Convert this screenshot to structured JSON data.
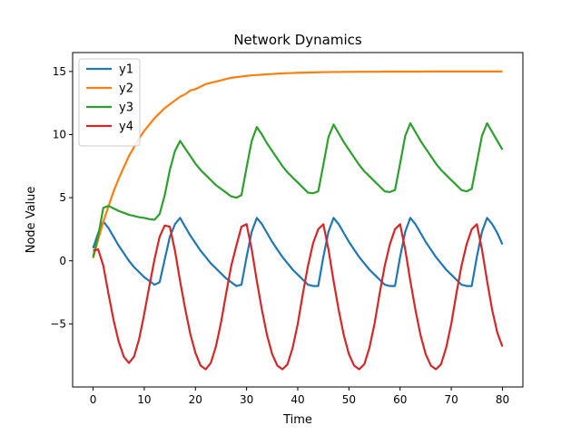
{
  "chart_data": {
    "type": "line",
    "title": "Network Dynamics",
    "xlabel": "Time",
    "ylabel": "Node Value",
    "xlim": [
      -4,
      84
    ],
    "ylim": [
      -10,
      16.5
    ],
    "xticks": [
      0,
      10,
      20,
      30,
      40,
      50,
      60,
      70,
      80
    ],
    "yticks": [
      -5,
      0,
      5,
      10,
      15
    ],
    "ytick_labels": [
      "−5",
      "0",
      "5",
      "10",
      "15"
    ],
    "grid": false,
    "legend": {
      "placement": "top-left"
    },
    "x": [
      0,
      1,
      2,
      3,
      4,
      5,
      6,
      7,
      8,
      9,
      10,
      11,
      12,
      13,
      14,
      15,
      16,
      17,
      18,
      19,
      20,
      21,
      22,
      23,
      24,
      25,
      26,
      27,
      28,
      29,
      30,
      31,
      32,
      33,
      34,
      35,
      36,
      37,
      38,
      39,
      40,
      41,
      42,
      43,
      44,
      45,
      46,
      47,
      48,
      49,
      50,
      51,
      52,
      53,
      54,
      55,
      56,
      57,
      58,
      59,
      60,
      61,
      62,
      63,
      64,
      65,
      66,
      67,
      68,
      69,
      70,
      71,
      72,
      73,
      74,
      75,
      76,
      77,
      78,
      79,
      80
    ],
    "series": [
      {
        "name": "y1",
        "color": "#1f77b4",
        "values": [
          1.0,
          2.2,
          3.1,
          2.6,
          1.9,
          1.2,
          0.6,
          0.0,
          -0.5,
          -0.9,
          -1.3,
          -1.6,
          -1.9,
          -1.7,
          0.1,
          1.9,
          2.9,
          3.4,
          2.7,
          2.0,
          1.4,
          0.8,
          0.3,
          -0.2,
          -0.6,
          -1.0,
          -1.4,
          -1.7,
          -2.0,
          -1.9,
          0.3,
          2.3,
          3.4,
          2.9,
          2.2,
          1.5,
          0.9,
          0.3,
          -0.2,
          -0.7,
          -1.1,
          -1.5,
          -1.9,
          -2.0,
          -2.0,
          0.3,
          2.3,
          3.4,
          2.9,
          2.2,
          1.5,
          0.9,
          0.3,
          -0.2,
          -0.7,
          -1.1,
          -1.5,
          -1.9,
          -2.0,
          -2.0,
          0.3,
          2.3,
          3.4,
          2.9,
          2.2,
          1.5,
          0.9,
          0.3,
          -0.2,
          -0.7,
          -1.1,
          -1.5,
          -1.9,
          -2.0,
          -2.0,
          0.3,
          2.3,
          3.4,
          2.9,
          2.2,
          1.3
        ]
      },
      {
        "name": "y2",
        "color": "#ff7f0e",
        "values": [
          0.2,
          1.7,
          3.1,
          4.3,
          5.5,
          6.5,
          7.4,
          8.3,
          9.0,
          9.7,
          10.3,
          10.8,
          11.3,
          11.7,
          12.1,
          12.4,
          12.7,
          13.0,
          13.2,
          13.5,
          13.6,
          13.8,
          14.0,
          14.1,
          14.2,
          14.3,
          14.4,
          14.5,
          14.55,
          14.6,
          14.65,
          14.7,
          14.72,
          14.75,
          14.78,
          14.8,
          14.83,
          14.85,
          14.87,
          14.88,
          14.9,
          14.9,
          14.92,
          14.93,
          14.94,
          14.95,
          14.95,
          14.96,
          14.96,
          14.97,
          14.97,
          14.97,
          14.98,
          14.98,
          14.98,
          14.98,
          14.98,
          14.99,
          14.99,
          14.99,
          14.99,
          14.99,
          14.99,
          14.99,
          14.99,
          15.0,
          15.0,
          15.0,
          15.0,
          15.0,
          15.0,
          15.0,
          15.0,
          15.0,
          15.0,
          15.0,
          15.0,
          15.0,
          15.0,
          15.0,
          15.0
        ]
      },
      {
        "name": "y3",
        "color": "#2ca02c",
        "values": [
          0.3,
          2.0,
          4.2,
          4.35,
          4.15,
          3.95,
          3.8,
          3.65,
          3.55,
          3.45,
          3.4,
          3.3,
          3.25,
          3.7,
          5.2,
          7.2,
          8.7,
          9.5,
          8.9,
          8.3,
          7.7,
          7.2,
          6.8,
          6.4,
          6.0,
          5.7,
          5.4,
          5.1,
          5.0,
          5.2,
          7.4,
          9.5,
          10.6,
          10.0,
          9.3,
          8.7,
          8.1,
          7.5,
          7.0,
          6.6,
          6.2,
          5.8,
          5.4,
          5.35,
          5.5,
          7.6,
          9.8,
          10.8,
          10.1,
          9.4,
          8.8,
          8.2,
          7.6,
          7.1,
          6.7,
          6.3,
          5.9,
          5.5,
          5.45,
          5.6,
          7.7,
          9.9,
          10.9,
          10.2,
          9.5,
          8.9,
          8.3,
          7.7,
          7.2,
          6.8,
          6.4,
          6.0,
          5.6,
          5.5,
          5.7,
          7.8,
          9.9,
          10.9,
          10.2,
          9.5,
          8.8
        ]
      },
      {
        "name": "y4",
        "color": "#d62728",
        "values": [
          0.8,
          0.9,
          -0.4,
          -2.6,
          -4.7,
          -6.4,
          -7.6,
          -8.1,
          -7.6,
          -6.2,
          -4.2,
          -2.0,
          0.1,
          1.9,
          2.8,
          2.7,
          0.8,
          -1.6,
          -3.8,
          -5.8,
          -7.3,
          -8.3,
          -8.6,
          -8.1,
          -6.8,
          -4.9,
          -2.6,
          -0.4,
          1.2,
          2.7,
          2.9,
          0.9,
          -1.6,
          -3.9,
          -5.9,
          -7.4,
          -8.3,
          -8.6,
          -8.2,
          -6.9,
          -5.0,
          -2.6,
          -0.4,
          1.4,
          2.5,
          2.9,
          0.9,
          -1.6,
          -3.9,
          -5.9,
          -7.4,
          -8.3,
          -8.6,
          -8.2,
          -6.9,
          -5.0,
          -2.6,
          -0.4,
          1.3,
          2.5,
          2.9,
          0.9,
          -1.6,
          -3.9,
          -5.9,
          -7.4,
          -8.3,
          -8.6,
          -8.2,
          -6.9,
          -5.0,
          -2.6,
          -0.4,
          1.3,
          2.5,
          2.9,
          0.9,
          -1.6,
          -3.9,
          -5.7,
          -6.8
        ]
      }
    ]
  }
}
